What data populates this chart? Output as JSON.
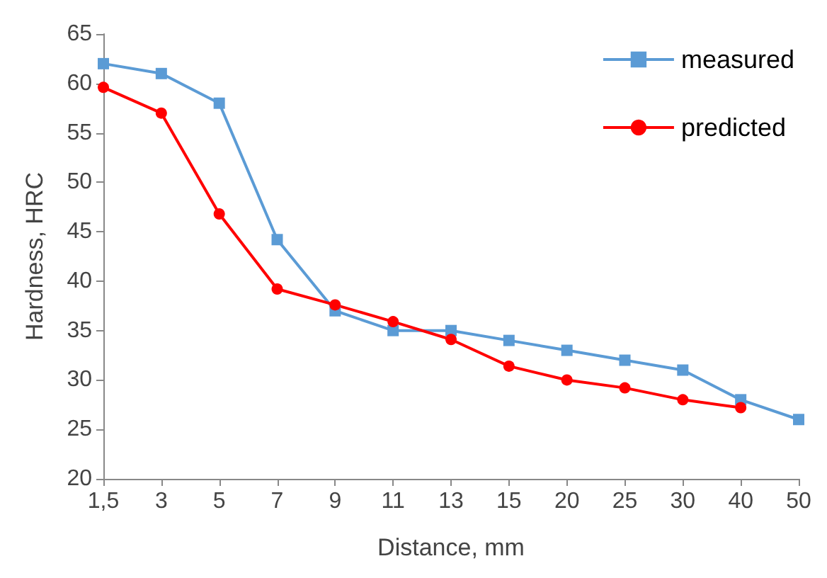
{
  "chart_data": {
    "type": "line",
    "xlabel": "Distance, mm",
    "ylabel": "Hardness, HRC",
    "categories": [
      "1,5",
      "3",
      "5",
      "7",
      "9",
      "11",
      "13",
      "15",
      "20",
      "25",
      "30",
      "40",
      "50"
    ],
    "series": [
      {
        "name": "measured",
        "color": "#5b9bd5",
        "marker": "square",
        "values": [
          62,
          61,
          58,
          44.2,
          37,
          35,
          35,
          34,
          33,
          32,
          31,
          28,
          26
        ]
      },
      {
        "name": "predicted",
        "color": "#ff0000",
        "marker": "circle",
        "values": [
          59.6,
          57,
          46.8,
          39.2,
          37.6,
          35.9,
          34.1,
          31.4,
          30,
          29.2,
          28,
          27.2,
          null
        ]
      }
    ],
    "ylim": [
      20,
      65
    ],
    "yticks": [
      20,
      25,
      30,
      35,
      40,
      45,
      50,
      55,
      60,
      65
    ],
    "grid": false,
    "legend": "top right"
  }
}
